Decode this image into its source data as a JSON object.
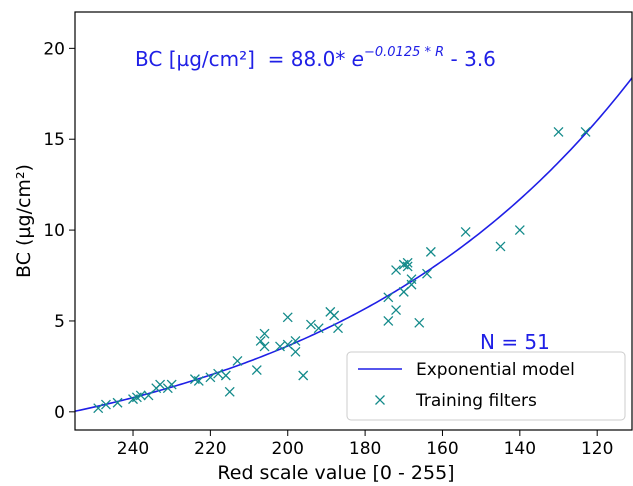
{
  "chart_data": {
    "type": "scatter",
    "xlabel": "Red scale value [0 - 255]",
    "ylabel": "BC (µg/cm²)",
    "xlim": [
      255,
      111
    ],
    "ylim": [
      -1,
      22
    ],
    "x_inverted": true,
    "x_ticks": [
      240,
      220,
      200,
      180,
      160,
      140,
      120
    ],
    "y_ticks": [
      0,
      5,
      10,
      15,
      20
    ],
    "grid": false,
    "legend_placement": "lower-right",
    "colors": {
      "model": "#1f1fe6",
      "points": "#138a8a"
    },
    "series": [
      {
        "name": "Exponential model",
        "kind": "line",
        "model": {
          "a": 88.0,
          "b": -0.0125,
          "c": -3.6
        }
      },
      {
        "name": "Training filters",
        "kind": "scatter",
        "points": [
          [
            249,
            0.2
          ],
          [
            247,
            0.4
          ],
          [
            244,
            0.5
          ],
          [
            240,
            0.7
          ],
          [
            239,
            0.8
          ],
          [
            238,
            0.9
          ],
          [
            236,
            0.9
          ],
          [
            234,
            1.3
          ],
          [
            233,
            1.5
          ],
          [
            231,
            1.3
          ],
          [
            230,
            1.5
          ],
          [
            224,
            1.8
          ],
          [
            223,
            1.7
          ],
          [
            220,
            1.9
          ],
          [
            218,
            2.1
          ],
          [
            216,
            2.0
          ],
          [
            215,
            1.1
          ],
          [
            213,
            2.8
          ],
          [
            208,
            2.3
          ],
          [
            207,
            3.9
          ],
          [
            206,
            3.6
          ],
          [
            206,
            4.3
          ],
          [
            202,
            3.6
          ],
          [
            200,
            5.2
          ],
          [
            200,
            3.7
          ],
          [
            198,
            3.3
          ],
          [
            198,
            3.9
          ],
          [
            196,
            2.0
          ],
          [
            194,
            4.8
          ],
          [
            192,
            4.6
          ],
          [
            189,
            5.5
          ],
          [
            188,
            5.3
          ],
          [
            187,
            4.6
          ],
          [
            174,
            6.3
          ],
          [
            174,
            5.0
          ],
          [
            172,
            5.6
          ],
          [
            172,
            7.8
          ],
          [
            170,
            6.6
          ],
          [
            170,
            8.1
          ],
          [
            169,
            8.0
          ],
          [
            169,
            8.2
          ],
          [
            168,
            7.3
          ],
          [
            166,
            4.9
          ],
          [
            164,
            7.6
          ],
          [
            163,
            8.8
          ],
          [
            154,
            9.9
          ],
          [
            145,
            9.1
          ],
          [
            140,
            10.0
          ],
          [
            130,
            15.4
          ],
          [
            123,
            15.4
          ],
          [
            168,
            7.0
          ]
        ]
      }
    ],
    "annotations": {
      "equation_prefix": "BC [µg/cm²]  = 88.0* ",
      "equation_base": "e",
      "equation_exponent": "−0.0125 * R",
      "equation_suffix": " - 3.6",
      "count": "N = 51"
    }
  }
}
